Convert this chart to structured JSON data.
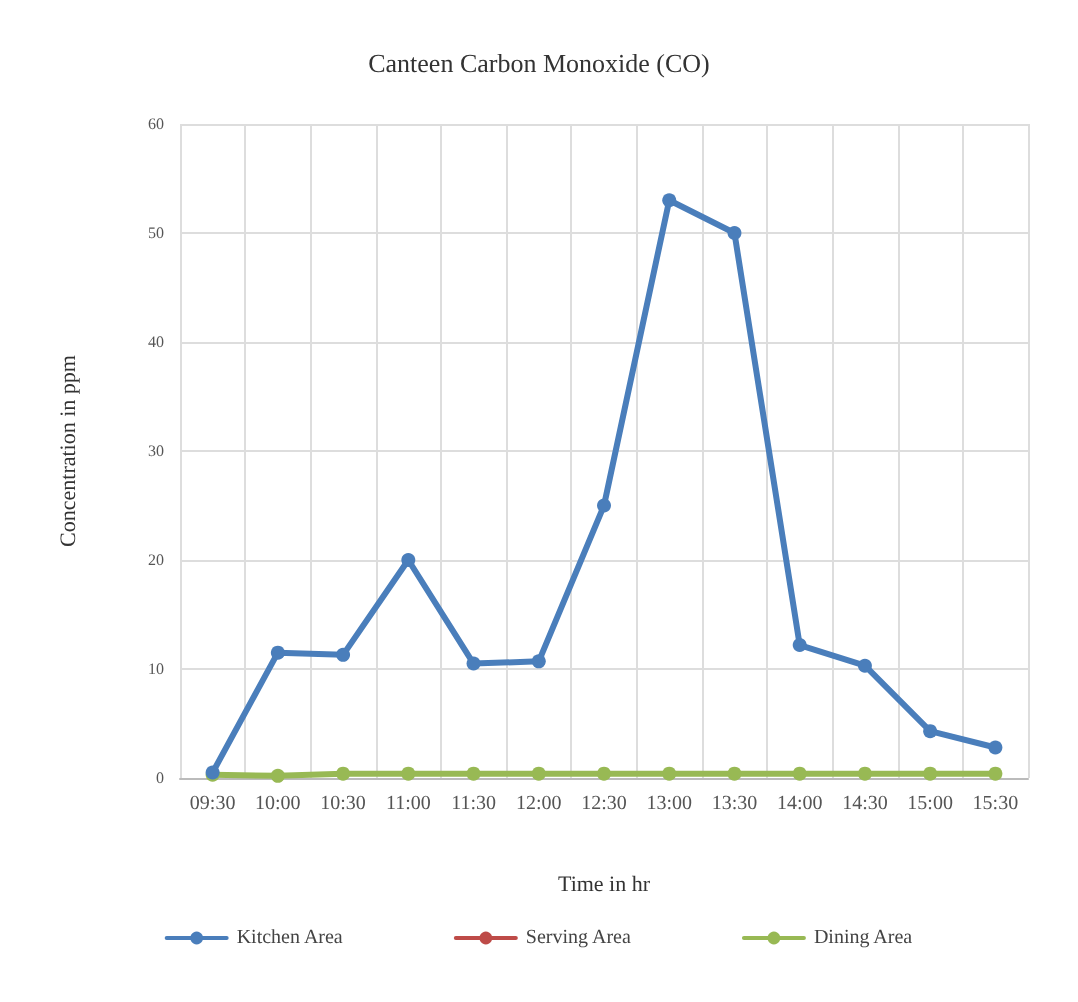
{
  "chart_data": {
    "type": "line",
    "title": "Canteen Carbon Monoxide (CO)",
    "xlabel": "Time in hr",
    "ylabel": "Concentration in ppm",
    "categories": [
      "09:30",
      "10:00",
      "10:30",
      "11:00",
      "11:30",
      "12:00",
      "12:30",
      "13:00",
      "13:30",
      "14:00",
      "14:30",
      "15:00",
      "15:30"
    ],
    "series": [
      {
        "name": "Kitchen Area",
        "color": "#4a7ebb",
        "values": [
          0.5,
          11.5,
          11.3,
          20,
          10.5,
          10.7,
          25,
          53,
          50,
          12.2,
          10.3,
          4.3,
          2.8
        ]
      },
      {
        "name": "Serving Area",
        "color": "#be4b48",
        "values": [
          null,
          null,
          null,
          null,
          null,
          null,
          null,
          null,
          null,
          null,
          null,
          null,
          null
        ]
      },
      {
        "name": "Dining Area",
        "color": "#98b954",
        "values": [
          0.3,
          0.2,
          0.4,
          0.4,
          0.4,
          0.4,
          0.4,
          0.4,
          0.4,
          0.4,
          0.4,
          0.4,
          0.4
        ]
      }
    ],
    "ylim": [
      0,
      60
    ],
    "yticks": [
      0,
      10,
      20,
      30,
      40,
      50,
      60
    ],
    "grid": true,
    "legend": "bottom",
    "marker": "circle",
    "line_style": "solid"
  }
}
